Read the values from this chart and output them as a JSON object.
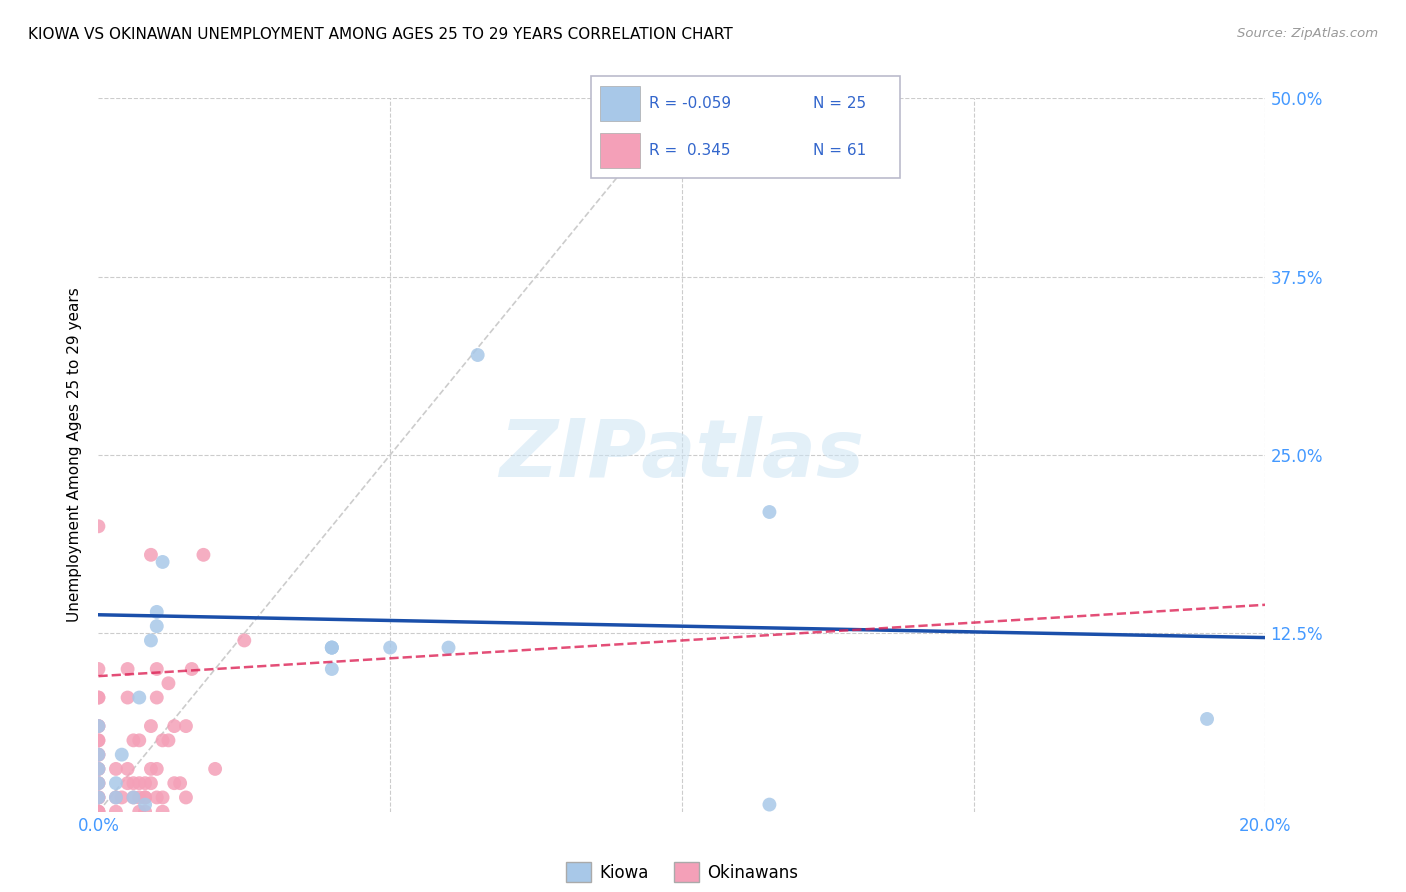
{
  "title": "KIOWA VS OKINAWAN UNEMPLOYMENT AMONG AGES 25 TO 29 YEARS CORRELATION CHART",
  "source": "Source: ZipAtlas.com",
  "ylabel": "Unemployment Among Ages 25 to 29 years",
  "xlim": [
    0.0,
    0.2
  ],
  "ylim": [
    0.0,
    0.5
  ],
  "xticks": [
    0.0,
    0.05,
    0.1,
    0.15,
    0.2
  ],
  "xtick_labels": [
    "0.0%",
    "",
    "",
    "",
    "20.0%"
  ],
  "yticks": [
    0.0,
    0.125,
    0.25,
    0.375,
    0.5
  ],
  "ytick_labels": [
    "",
    "12.5%",
    "25.0%",
    "37.5%",
    "50.0%"
  ],
  "kiowa_color": "#a8c8e8",
  "okinawan_color": "#f4a0b8",
  "kiowa_line_color": "#1a4faa",
  "okinawan_line_color": "#dd2255",
  "watermark_text": "ZIPatlas",
  "kiowa_line_start_y": 0.138,
  "kiowa_line_end_y": 0.122,
  "okinawan_line_start_y": 0.095,
  "okinawan_line_end_y": 0.145,
  "diag_line_x": [
    0.0,
    0.1
  ],
  "diag_line_y": [
    0.0,
    0.5
  ],
  "kiowa_x": [
    0.0,
    0.0,
    0.0,
    0.0,
    0.0,
    0.003,
    0.003,
    0.004,
    0.006,
    0.007,
    0.008,
    0.009,
    0.01,
    0.01,
    0.011,
    0.04,
    0.04,
    0.04,
    0.04,
    0.05,
    0.06,
    0.065,
    0.115,
    0.115,
    0.19
  ],
  "kiowa_y": [
    0.01,
    0.02,
    0.03,
    0.04,
    0.06,
    0.01,
    0.02,
    0.04,
    0.01,
    0.08,
    0.005,
    0.12,
    0.13,
    0.14,
    0.175,
    0.1,
    0.115,
    0.115,
    0.115,
    0.115,
    0.115,
    0.32,
    0.005,
    0.21,
    0.065
  ],
  "okinawan_x": [
    0.0,
    0.0,
    0.0,
    0.0,
    0.0,
    0.0,
    0.0,
    0.0,
    0.0,
    0.0,
    0.0,
    0.0,
    0.0,
    0.0,
    0.0,
    0.0,
    0.0,
    0.0,
    0.0,
    0.0,
    0.003,
    0.003,
    0.003,
    0.004,
    0.005,
    0.005,
    0.005,
    0.005,
    0.006,
    0.006,
    0.006,
    0.007,
    0.007,
    0.007,
    0.007,
    0.008,
    0.008,
    0.008,
    0.008,
    0.009,
    0.009,
    0.009,
    0.009,
    0.01,
    0.01,
    0.01,
    0.01,
    0.011,
    0.011,
    0.011,
    0.012,
    0.012,
    0.013,
    0.013,
    0.014,
    0.015,
    0.015,
    0.016,
    0.018,
    0.02,
    0.025
  ],
  "okinawan_y": [
    0.0,
    0.0,
    0.0,
    0.01,
    0.01,
    0.01,
    0.02,
    0.02,
    0.03,
    0.03,
    0.04,
    0.04,
    0.05,
    0.05,
    0.06,
    0.06,
    0.08,
    0.08,
    0.1,
    0.2,
    0.0,
    0.01,
    0.03,
    0.01,
    0.02,
    0.03,
    0.08,
    0.1,
    0.01,
    0.02,
    0.05,
    0.0,
    0.01,
    0.02,
    0.05,
    0.0,
    0.01,
    0.01,
    0.02,
    0.02,
    0.03,
    0.06,
    0.18,
    0.01,
    0.03,
    0.08,
    0.1,
    0.0,
    0.01,
    0.05,
    0.05,
    0.09,
    0.02,
    0.06,
    0.02,
    0.01,
    0.06,
    0.1,
    0.18,
    0.03,
    0.12
  ]
}
